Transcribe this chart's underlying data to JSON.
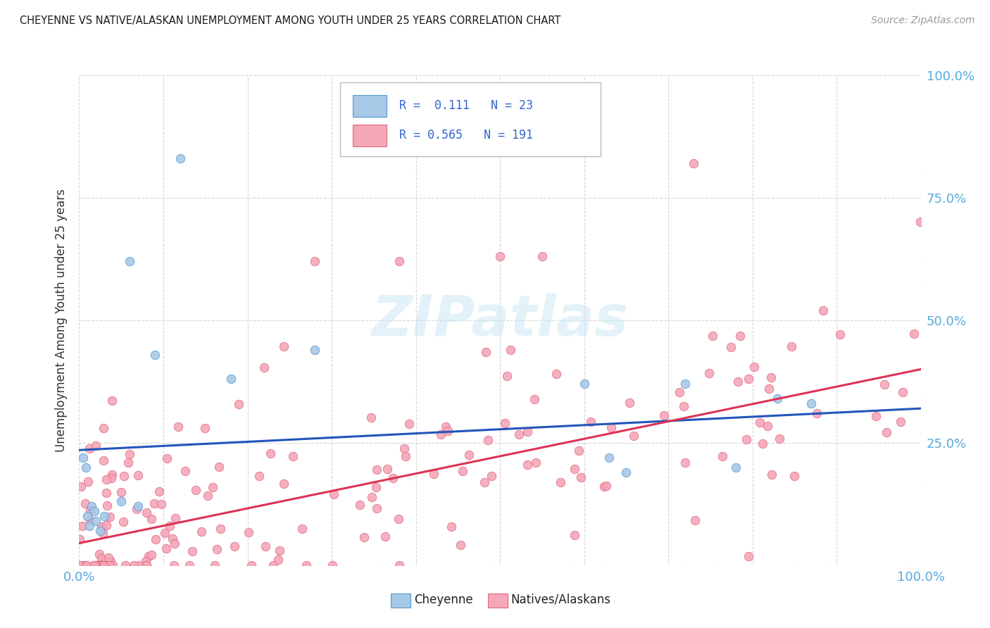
{
  "title": "CHEYENNE VS NATIVE/ALASKAN UNEMPLOYMENT AMONG YOUTH UNDER 25 YEARS CORRELATION CHART",
  "source": "Source: ZipAtlas.com",
  "ylabel": "Unemployment Among Youth under 25 years",
  "background_color": "#ffffff",
  "watermark_text": "ZIPatlas",
  "cheyenne_color": "#a8c8e8",
  "cheyenne_edge": "#5599cc",
  "native_color": "#f4a8b8",
  "native_edge": "#e06880",
  "cheyenne_R": 0.111,
  "cheyenne_N": 23,
  "native_R": 0.565,
  "native_N": 191,
  "cheyenne_line_color": "#2255bb",
  "native_line_color": "#dd3355",
  "tick_color": "#55aadd",
  "grid_color": "#cccccc",
  "cheyenne_line_intercept": 0.235,
  "cheyenne_line_slope": 0.085,
  "native_line_intercept": 0.045,
  "native_line_slope": 0.355
}
